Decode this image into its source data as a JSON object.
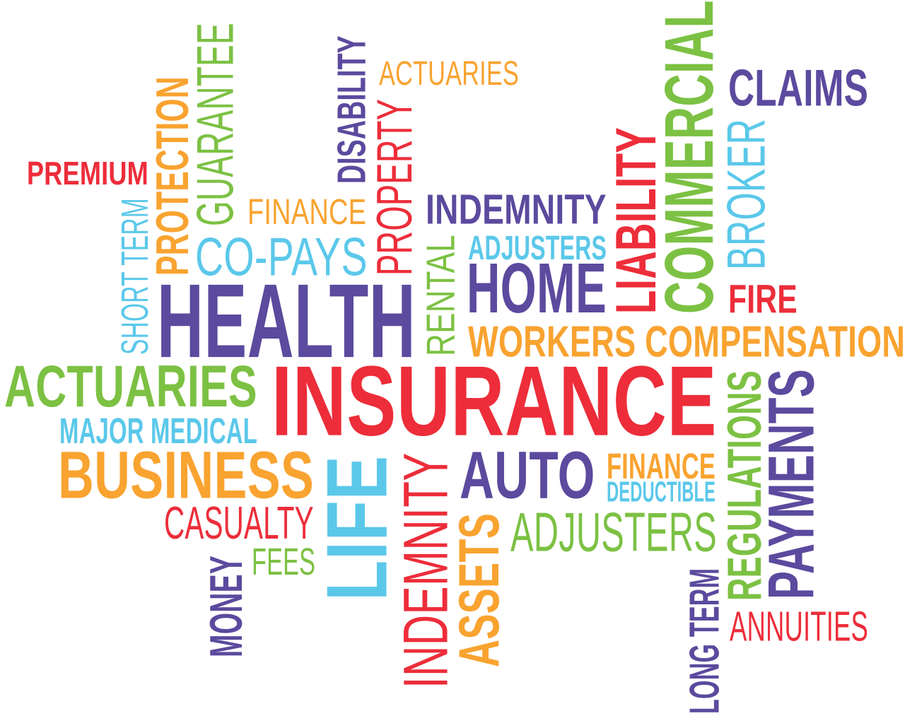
{
  "colors": {
    "red": "#ed2d3a",
    "orange": "#f9a330",
    "green": "#7cc143",
    "purple": "#5b4a9e",
    "blue": "#5bc8ea"
  },
  "words": {
    "actuaries_top": "ACTUARIES",
    "disability": "DISABILITY",
    "guarantee": "GUARANTEE",
    "protection": "PROTECTION",
    "premium": "PREMIUM",
    "short_term": "SHORT TERM",
    "finance_top": "FINANCE",
    "property": "PROPERTY",
    "co_pays": "CO-PAYS",
    "indemnity_top": "INDEMNITY",
    "adjusters_top": "ADJUSTERS",
    "rental": "RENTAL",
    "home": "HOME",
    "health": "HEALTH",
    "liability": "LIABILITY",
    "commercial": "COMMERCIAL",
    "claims": "CLAIMS",
    "broker": "BROKER",
    "fire": "FIRE",
    "workers_compensation": "WORKERS COMPENSATION",
    "actuaries_left": "ACTUARIES",
    "insurance": "INSURANCE",
    "major_medical": "MAJOR MEDICAL",
    "business": "BUSINESS",
    "life": "LIFE",
    "indemnity_bottom": "INDEMNITY",
    "auto": "AUTO",
    "finance_bottom": "FINANCE",
    "deductible": "DEDUCTIBLE",
    "regulations": "REGULATIONS",
    "payments": "PAYMENTS",
    "casualty": "CASUALTY",
    "fees": "FEES",
    "money": "MONEY",
    "assets": "ASSETS",
    "adjusters_bottom": "ADJUSTERS",
    "long_term": "LONG TERM",
    "annuities": "ANNUITIES"
  }
}
